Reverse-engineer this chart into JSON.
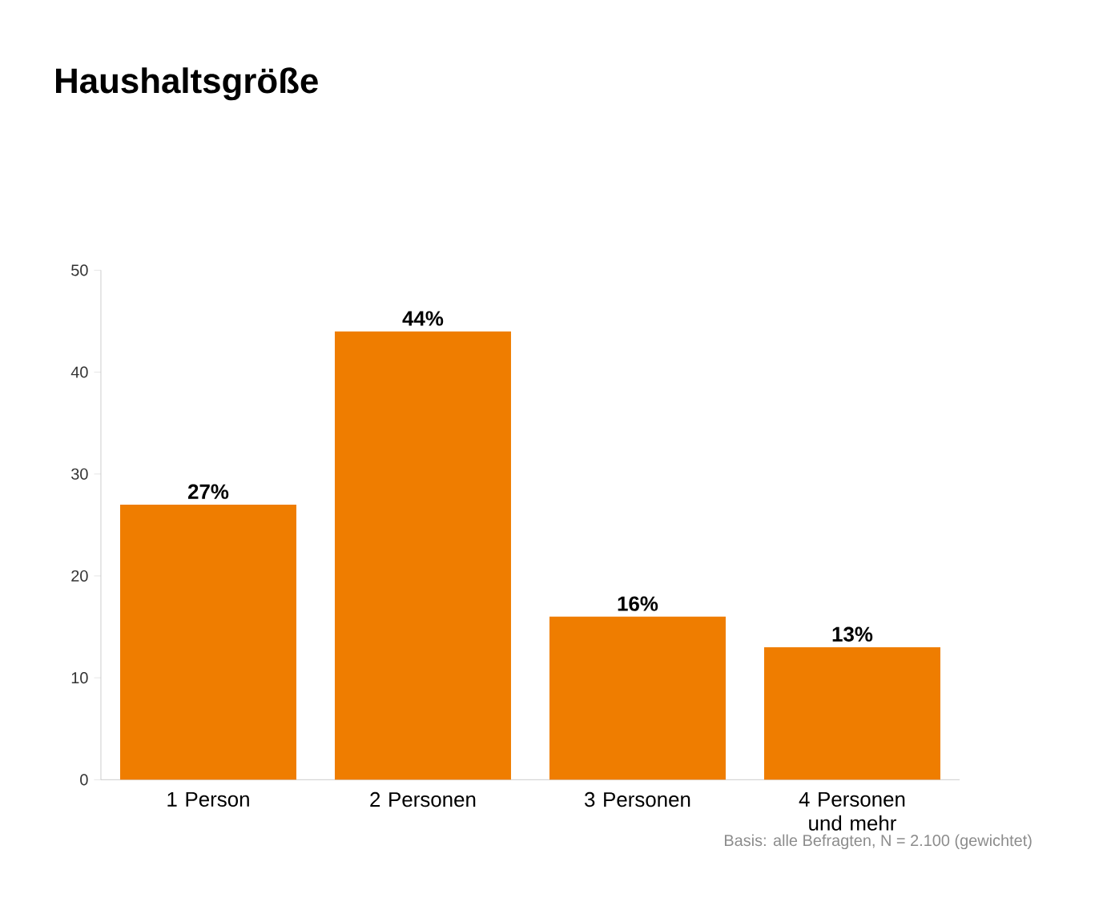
{
  "chart_data": {
    "type": "bar",
    "title": "Haushaltsgröße",
    "categories": [
      "1 Person",
      "2 Personen",
      "3 Personen",
      "4 Personen und mehr"
    ],
    "values": [
      27,
      44,
      16,
      13
    ],
    "value_labels": [
      "27%",
      "44%",
      "16%",
      "13%"
    ],
    "color": "#ef7d00",
    "ylim": [
      0,
      50
    ],
    "yticks": [
      0,
      10,
      20,
      30,
      40,
      50
    ],
    "grid": false,
    "annotations": [
      "Basis: alle Befragten, N = 2.100 (gewichtet)"
    ]
  }
}
